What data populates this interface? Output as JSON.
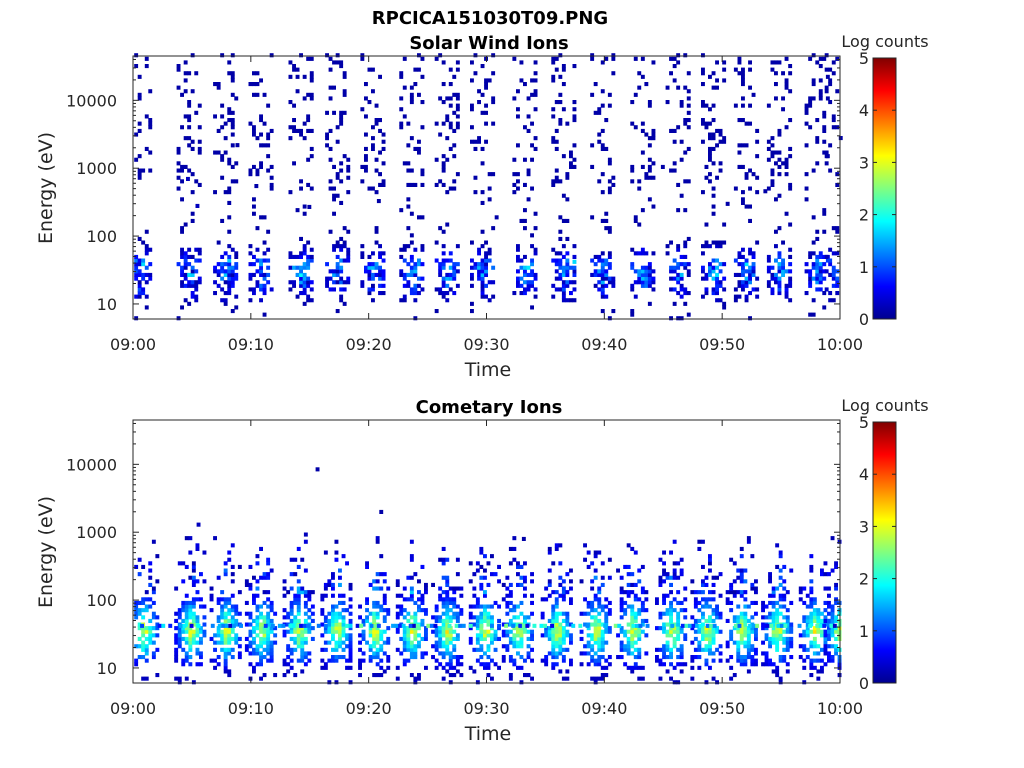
{
  "figure": {
    "title": "RPCICA151030T09.PNG"
  },
  "colorbar_label": "Log counts",
  "chart_data": [
    {
      "type": "heatmap",
      "title": "Solar Wind Ions",
      "xlabel": "Time",
      "ylabel": "Energy (eV)",
      "y_scale": "log",
      "ylim": [
        6,
        45000
      ],
      "xlim": [
        "09:00",
        "10:00"
      ],
      "x_ticks": [
        "09:00",
        "09:10",
        "09:20",
        "09:30",
        "09:40",
        "09:50",
        "10:00"
      ],
      "y_ticks": [
        "10",
        "100",
        "1000",
        "10000"
      ],
      "colorbar": {
        "label": "Log counts",
        "range": [
          0,
          5
        ],
        "ticks": [
          "0",
          "1",
          "2",
          "3",
          "4",
          "5"
        ],
        "colormap": "jet"
      },
      "bursts_minutes": [
        0.5,
        4.7,
        7.8,
        10.8,
        14.2,
        17.3,
        20.3,
        23.6,
        26.6,
        29.6,
        33.2,
        36.5,
        39.8,
        43.2,
        46.2,
        49.2,
        52.0,
        54.8,
        58.0,
        59.7
      ],
      "typical_energy_range_eV": [
        12,
        100
      ],
      "typical_log_counts": [
        0.2,
        2.5
      ],
      "isolated_points": [
        {
          "t": 4.0,
          "E": 1050,
          "v": 0.2
        },
        {
          "t": 4.5,
          "E": 700,
          "v": 0.3
        },
        {
          "t": 5.3,
          "E": 280,
          "v": 0.3
        },
        {
          "t": 8.7,
          "E": 2200,
          "v": 0.2
        },
        {
          "t": 10.3,
          "E": 550,
          "v": 0.2
        },
        {
          "t": 14.8,
          "E": 270,
          "v": 0.2
        },
        {
          "t": 20.7,
          "E": 330,
          "v": 0.2
        },
        {
          "t": 30.7,
          "E": 190,
          "v": 0.2
        },
        {
          "t": 37.3,
          "E": 42,
          "v": 1.7
        },
        {
          "t": 44.8,
          "E": 1050,
          "v": 0.2
        },
        {
          "t": 50.3,
          "E": 300,
          "v": 0.2
        },
        {
          "t": 53.5,
          "E": 460,
          "v": 0.2
        },
        {
          "t": 59.9,
          "E": 2800,
          "v": 0.2
        }
      ]
    },
    {
      "type": "heatmap",
      "title": "Cometary Ions",
      "xlabel": "Time",
      "ylabel": "Energy (eV)",
      "y_scale": "log",
      "ylim": [
        6,
        45000
      ],
      "xlim": [
        "09:00",
        "10:00"
      ],
      "x_ticks": [
        "09:00",
        "09:10",
        "09:20",
        "09:30",
        "09:40",
        "09:50",
        "10:00"
      ],
      "y_ticks": [
        "10",
        "100",
        "1000",
        "10000"
      ],
      "colorbar": {
        "label": "Log counts",
        "range": [
          0,
          5
        ],
        "ticks": [
          "0",
          "1",
          "2",
          "3",
          "4",
          "5"
        ],
        "colormap": "jet"
      },
      "bursts_minutes": [
        0.8,
        4.8,
        7.8,
        10.8,
        14.0,
        17.2,
        20.4,
        23.6,
        26.6,
        29.8,
        32.6,
        35.9,
        39.2,
        42.3,
        45.6,
        48.6,
        51.6,
        54.6,
        57.8,
        59.9
      ],
      "typical_energy_range_eV": [
        8,
        700
      ],
      "peak_log_counts": 3.6,
      "isolated_points": [
        {
          "t": 15.5,
          "E": 8500,
          "v": 0.2
        },
        {
          "t": 20.9,
          "E": 2000,
          "v": 0.2
        },
        {
          "t": 5.4,
          "E": 1300,
          "v": 0.3
        },
        {
          "t": 33.0,
          "E": 800,
          "v": 0.2
        }
      ]
    }
  ]
}
